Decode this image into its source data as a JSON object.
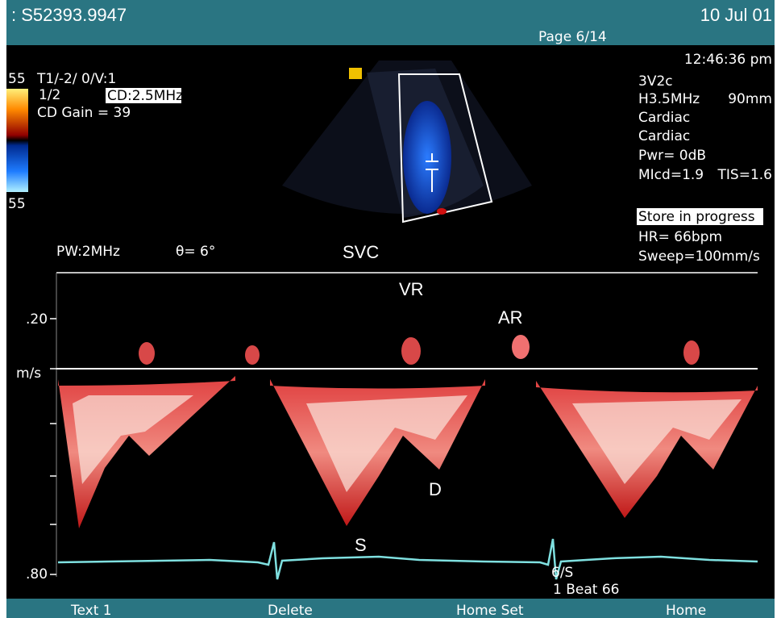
{
  "header": {
    "id": ": S52393.9947",
    "page": "Page 6/14",
    "date": "10 Jul 01"
  },
  "left_panel": {
    "scale_top": "55",
    "mode": "T1/-2/ 0/V:1",
    "ratio": "1/2",
    "cd_freq": "CD:2.5MHz",
    "cd_gain": "CD Gain = 39",
    "scale_bottom": "55"
  },
  "right_panel": {
    "time": "12:46:36 pm",
    "probe": "3V2c",
    "freq": "H3.5MHz",
    "depth": "90mm",
    "preset1": "Cardiac",
    "preset2": "Cardiac",
    "power": "Pwr=  0dB",
    "mi": "MIcd=1.9",
    "tis": "TIS=1.6",
    "status": "Store in progress",
    "hr": "HR=  66bpm",
    "sweep": "Sweep=100mm/s"
  },
  "doppler": {
    "pw": "PW:2MHz",
    "angle": "θ=  6°",
    "vessel": "SVC",
    "labels": {
      "vr": "VR",
      "ar": "AR",
      "d": "D",
      "s": "S"
    },
    "axis": {
      "top": ".20",
      "unit": "m/s",
      "bottom": ".80"
    },
    "ecg_label": "6/S",
    "beat": "1 Beat 66"
  },
  "footer": {
    "buttons": [
      "Text 1",
      "Delete",
      "Home Set",
      "Home"
    ]
  }
}
